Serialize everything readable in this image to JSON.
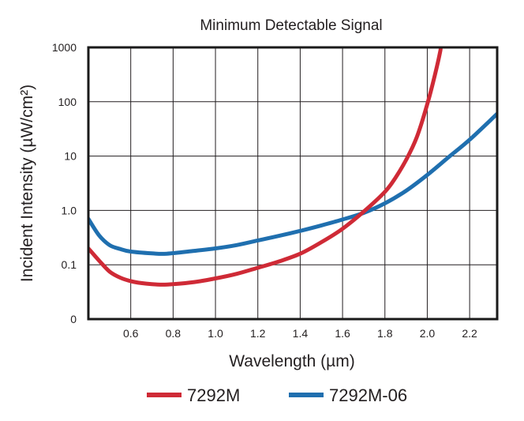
{
  "chart_data": {
    "type": "line",
    "title": "Minimum Detectable Signal",
    "xlabel": "Wavelength (µm)",
    "ylabel": "Incident Intensity (µW/cm²)",
    "yscale": "log",
    "xlim": [
      0.4,
      2.33
    ],
    "ylim": [
      0.01,
      1000
    ],
    "x_ticks": [
      0.6,
      0.8,
      1.0,
      1.2,
      1.4,
      1.6,
      1.8,
      2.0,
      2.2
    ],
    "x_tick_labels": [
      "0.6",
      "0.8",
      "1.0",
      "1.2",
      "1.4",
      "1.6",
      "1.8",
      "2.0",
      "2.2"
    ],
    "y_ticks": [
      0.01,
      0.1,
      1,
      10,
      100,
      1000
    ],
    "y_tick_labels": [
      "0",
      "0.1",
      "1.0",
      "10",
      "100",
      "1000"
    ],
    "grid": true,
    "legend_position": "bottom",
    "series": [
      {
        "name": "7292M",
        "color": "#cf2a36",
        "points": [
          [
            0.4,
            0.2
          ],
          [
            0.45,
            0.12
          ],
          [
            0.5,
            0.075
          ],
          [
            0.55,
            0.058
          ],
          [
            0.6,
            0.05
          ],
          [
            0.65,
            0.046
          ],
          [
            0.7,
            0.044
          ],
          [
            0.75,
            0.043
          ],
          [
            0.8,
            0.044
          ],
          [
            0.9,
            0.048
          ],
          [
            1.0,
            0.056
          ],
          [
            1.1,
            0.068
          ],
          [
            1.2,
            0.088
          ],
          [
            1.3,
            0.115
          ],
          [
            1.4,
            0.16
          ],
          [
            1.5,
            0.26
          ],
          [
            1.6,
            0.46
          ],
          [
            1.7,
            0.95
          ],
          [
            1.8,
            2.2
          ],
          [
            1.85,
            4.0
          ],
          [
            1.9,
            8.5
          ],
          [
            1.95,
            22
          ],
          [
            2.0,
            90
          ],
          [
            2.03,
            250
          ],
          [
            2.06,
            800
          ],
          [
            2.063,
            1000
          ]
        ]
      },
      {
        "name": "7292M-06",
        "color": "#1f6faf",
        "points": [
          [
            0.4,
            0.7
          ],
          [
            0.45,
            0.35
          ],
          [
            0.5,
            0.23
          ],
          [
            0.55,
            0.195
          ],
          [
            0.6,
            0.175
          ],
          [
            0.7,
            0.162
          ],
          [
            0.77,
            0.16
          ],
          [
            0.9,
            0.18
          ],
          [
            1.0,
            0.2
          ],
          [
            1.1,
            0.23
          ],
          [
            1.2,
            0.28
          ],
          [
            1.3,
            0.34
          ],
          [
            1.4,
            0.42
          ],
          [
            1.5,
            0.53
          ],
          [
            1.6,
            0.68
          ],
          [
            1.7,
            0.9
          ],
          [
            1.8,
            1.35
          ],
          [
            1.9,
            2.3
          ],
          [
            2.0,
            4.5
          ],
          [
            2.1,
            9.5
          ],
          [
            2.2,
            20
          ],
          [
            2.33,
            60
          ]
        ]
      }
    ]
  }
}
